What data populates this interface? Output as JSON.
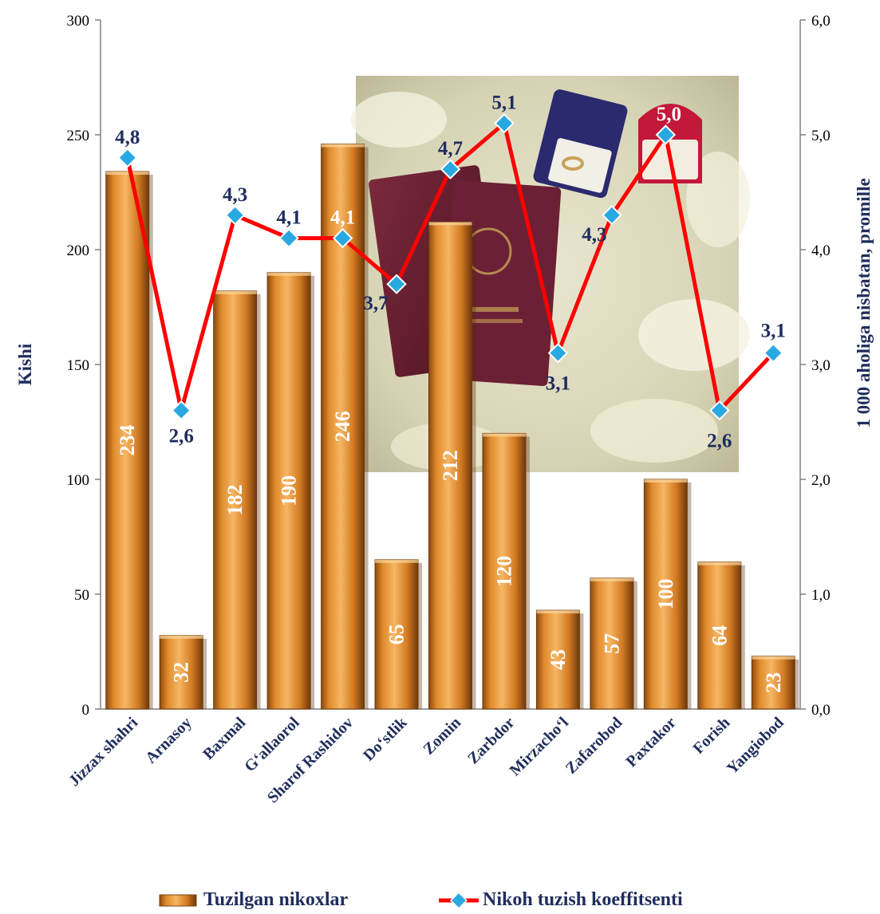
{
  "chart_data": {
    "type": "bar",
    "categories": [
      "Jizzax shahri",
      "Arnasoy",
      "Baxmal",
      "G‘allaorol",
      "Sharof Rashidov",
      "Do‘stlik",
      "Zomin",
      "Zarbdor",
      "Mirzacho‘l",
      "Zafarobod",
      "Paxtakor",
      "Forish",
      "Yangiobod"
    ],
    "series": [
      {
        "name": "Tuzilgan nikoxlar",
        "type": "bar",
        "axis": "left",
        "values": [
          234,
          32,
          182,
          190,
          246,
          65,
          212,
          120,
          43,
          57,
          100,
          64,
          23
        ],
        "labels": [
          "234",
          "32",
          "182",
          "190",
          "246",
          "65",
          "212",
          "120",
          "43",
          "57",
          "100",
          "64",
          "23"
        ]
      },
      {
        "name": "Nikoh tuzish koeffitsenti",
        "type": "line",
        "axis": "right",
        "values": [
          4.8,
          2.6,
          4.3,
          4.1,
          4.1,
          3.7,
          4.7,
          5.1,
          3.1,
          4.3,
          5.0,
          2.6,
          3.1
        ],
        "labels": [
          "4,8",
          "2,6",
          "4,3",
          "4,1",
          "4,1",
          "3,7",
          "4,7",
          "5,1",
          "3,1",
          "4,3",
          "5,0",
          "2,6",
          "3,1"
        ]
      }
    ],
    "ylabel": "Kishi",
    "y2label": "1 000 aholiga nisbatan, promille",
    "ylim": [
      0,
      300
    ],
    "y2lim": [
      0,
      6
    ],
    "yticks": [
      "0",
      "50",
      "100",
      "150",
      "200",
      "250",
      "300"
    ],
    "y2ticks": [
      "0,0",
      "1,0",
      "2,0",
      "3,0",
      "4,0",
      "5,0",
      "6,0"
    ],
    "legend_position": "bottom",
    "grid": false,
    "colors": {
      "bar": "#c8741f",
      "bar_light": "#f1ad5c",
      "bar_dark": "#7a3f0c",
      "line": "#ff0000",
      "marker": "#29a9e1",
      "text_dark": "#1f2d5c"
    }
  },
  "background_photo": {
    "icon": "wedding-passports-rings-photo"
  }
}
